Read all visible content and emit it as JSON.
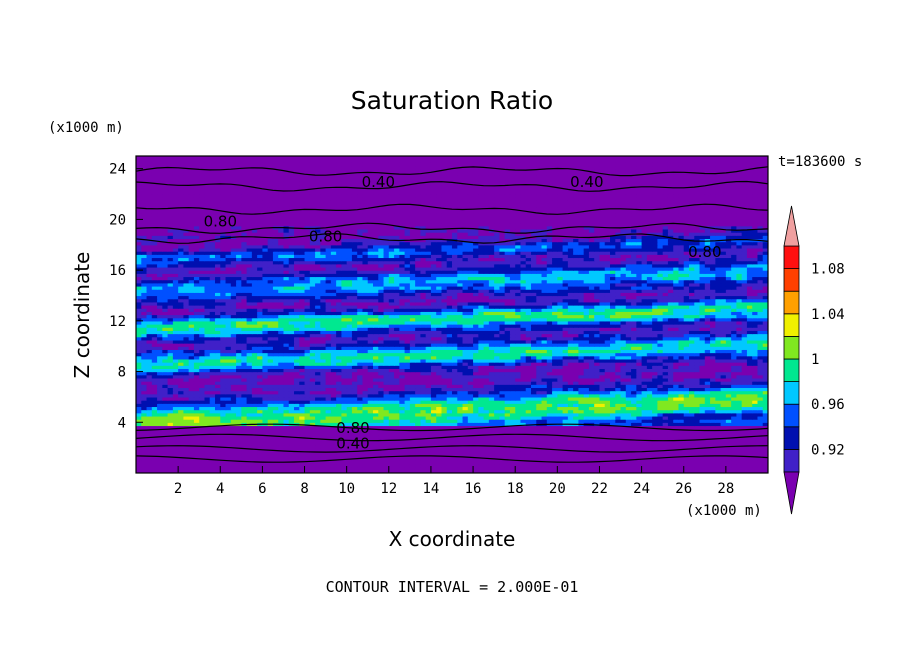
{
  "chart_data": {
    "type": "heatmap",
    "title": "Saturation Ratio",
    "xlabel": "X coordinate",
    "ylabel": "Z coordinate",
    "x_units": "(x1000 m)",
    "y_units": "(x1000 m)",
    "xlim": [
      0,
      30
    ],
    "ylim": [
      0,
      25
    ],
    "x_ticks": [
      2,
      4,
      6,
      8,
      10,
      12,
      14,
      16,
      18,
      20,
      22,
      24,
      26,
      28
    ],
    "y_ticks": [
      4,
      8,
      12,
      16,
      20,
      24
    ],
    "time_label": "t=183600 s",
    "contour_interval_label": "CONTOUR INTERVAL = 2.000E-01",
    "colorbar": {
      "levels": [
        0.9,
        0.92,
        0.94,
        0.96,
        0.98,
        1.0,
        1.02,
        1.04,
        1.06,
        1.08,
        1.1
      ],
      "tick_labels": [
        "0.92",
        "0.96",
        "1",
        "1.04",
        "1.08"
      ],
      "colors": [
        "#7a00b0",
        "#4020c8",
        "#0010b0",
        "#0050ff",
        "#00c8ff",
        "#00e890",
        "#80e820",
        "#f0f000",
        "#ffa000",
        "#ff4000",
        "#ff1010",
        "#f0a0a0"
      ]
    },
    "contour_labels": [
      {
        "text": "0.40",
        "x": 11.5,
        "y": 22.9
      },
      {
        "text": "0.40",
        "x": 21.4,
        "y": 22.9
      },
      {
        "text": "0.80",
        "x": 4.0,
        "y": 19.8
      },
      {
        "text": "0.80",
        "x": 9.0,
        "y": 18.6
      },
      {
        "text": "0.80",
        "x": 27.0,
        "y": 17.4
      },
      {
        "text": "0.80",
        "x": 10.3,
        "y": 3.5
      },
      {
        "text": "0.40",
        "x": 10.3,
        "y": 2.3
      }
    ]
  }
}
